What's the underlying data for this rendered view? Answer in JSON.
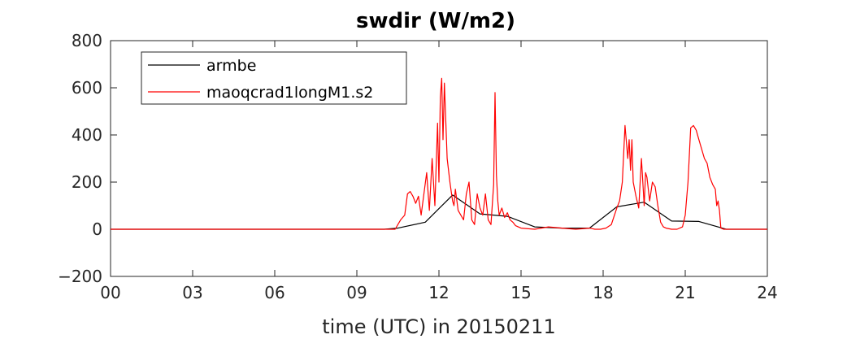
{
  "chart_data": {
    "type": "line",
    "title": "swdir  (W/m2)",
    "xlabel": "time (UTC) in 20150211",
    "ylabel": "",
    "xlim": [
      0,
      24
    ],
    "ylim": [
      -200,
      800
    ],
    "xticks": [
      0,
      3,
      6,
      9,
      12,
      15,
      18,
      21,
      24
    ],
    "xtick_labels": [
      "00",
      "03",
      "06",
      "09",
      "12",
      "15",
      "18",
      "21",
      "24"
    ],
    "yticks": [
      -200,
      0,
      200,
      400,
      600,
      800
    ],
    "ytick_labels": [
      "−200",
      "0",
      "200",
      "400",
      "600",
      "800"
    ],
    "grid": false,
    "legend_position": "top-left",
    "series": [
      {
        "name": "armbe",
        "color": "#000000",
        "x": [
          0,
          1,
          2,
          3,
          4,
          5,
          6,
          7,
          8,
          9,
          10,
          10.5,
          11.5,
          12.5,
          13.5,
          14.5,
          15.5,
          16.5,
          17.5,
          18.5,
          19.5,
          20.5,
          21.5,
          22.5,
          23.5,
          24
        ],
        "y": [
          0,
          0,
          0,
          0,
          0,
          0,
          0,
          0,
          0,
          0,
          0,
          5,
          30,
          145,
          65,
          55,
          10,
          5,
          5,
          95,
          115,
          35,
          33,
          0,
          0,
          0
        ]
      },
      {
        "name": "maoqcrad1longM1.s2",
        "color": "#ff0000",
        "x": [
          0,
          10.4,
          10.5,
          10.6,
          10.75,
          10.85,
          10.95,
          11.05,
          11.15,
          11.25,
          11.35,
          11.45,
          11.55,
          11.65,
          11.75,
          11.85,
          11.95,
          12.0,
          12.05,
          12.1,
          12.15,
          12.2,
          12.3,
          12.4,
          12.45,
          12.5,
          12.55,
          12.6,
          12.7,
          12.8,
          12.9,
          13.0,
          13.1,
          13.2,
          13.3,
          13.4,
          13.5,
          13.6,
          13.7,
          13.8,
          13.9,
          14.0,
          14.05,
          14.1,
          14.15,
          14.2,
          14.3,
          14.4,
          14.5,
          14.6,
          14.7,
          14.8,
          15.0,
          15.5,
          16.0,
          16.5,
          17.0,
          17.5,
          17.7,
          17.9,
          18.1,
          18.3,
          18.5,
          18.6,
          18.7,
          18.8,
          18.9,
          18.95,
          19.0,
          19.05,
          19.1,
          19.2,
          19.3,
          19.4,
          19.5,
          19.55,
          19.6,
          19.7,
          19.8,
          19.9,
          20.0,
          20.1,
          20.2,
          20.3,
          20.5,
          20.7,
          20.9,
          21.0,
          21.1,
          21.2,
          21.3,
          21.4,
          21.5,
          21.6,
          21.7,
          21.8,
          21.9,
          22.0,
          22.1,
          22.15,
          22.2,
          22.25,
          22.3,
          22.4,
          22.5,
          23.0,
          24
        ],
        "y": [
          0,
          0,
          20,
          40,
          60,
          150,
          160,
          140,
          110,
          140,
          60,
          150,
          240,
          80,
          300,
          100,
          450,
          200,
          560,
          640,
          380,
          620,
          300,
          200,
          160,
          120,
          100,
          170,
          80,
          60,
          40,
          150,
          200,
          40,
          20,
          150,
          90,
          60,
          150,
          40,
          20,
          190,
          580,
          230,
          120,
          60,
          90,
          50,
          70,
          40,
          30,
          15,
          5,
          0,
          10,
          5,
          0,
          5,
          0,
          0,
          5,
          20,
          90,
          120,
          200,
          440,
          300,
          380,
          250,
          380,
          200,
          140,
          90,
          300,
          100,
          240,
          220,
          120,
          200,
          180,
          100,
          30,
          10,
          5,
          0,
          0,
          10,
          60,
          200,
          430,
          440,
          420,
          380,
          340,
          300,
          280,
          220,
          190,
          170,
          100,
          120,
          80,
          5,
          0,
          0,
          0,
          0
        ]
      }
    ]
  }
}
